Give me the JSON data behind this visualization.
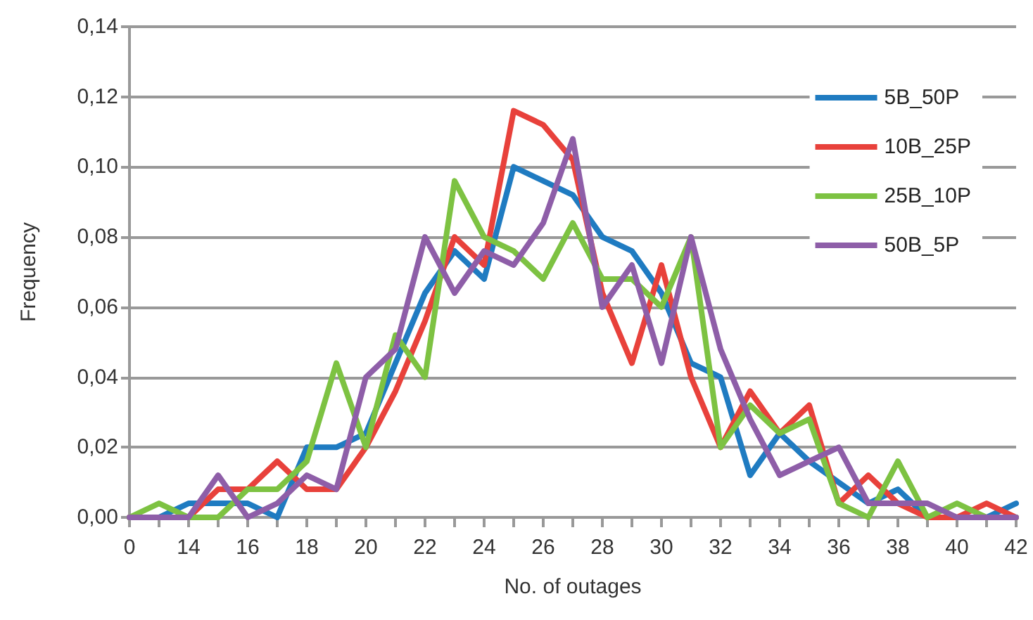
{
  "chart_data": {
    "type": "line",
    "xlabel": "No. of outages",
    "ylabel": "Frequency",
    "categories": [
      "0",
      null,
      "14",
      null,
      "16",
      null,
      "18",
      null,
      "20",
      null,
      "22",
      null,
      "24",
      null,
      "26",
      null,
      "28",
      null,
      "30",
      null,
      "32",
      null,
      "34",
      null,
      "36",
      null,
      "38",
      null,
      "40",
      null,
      "42"
    ],
    "series": [
      {
        "name": "5B_50P",
        "color": "#1f7bc1",
        "values": [
          0,
          0,
          0.004,
          0.004,
          0.004,
          0,
          0.02,
          0.02,
          0.024,
          0.044,
          0.064,
          0.076,
          0.068,
          0.1,
          0.096,
          0.092,
          0.08,
          0.076,
          0.064,
          0.044,
          0.04,
          0.012,
          0.024,
          0.016,
          0.01,
          0.004,
          0.008,
          0,
          0,
          0,
          0.004
        ]
      },
      {
        "name": "10B_25P",
        "color": "#e8413b",
        "values": [
          0,
          0,
          0,
          0.008,
          0.008,
          0.016,
          0.008,
          0.008,
          0.02,
          0.036,
          0.056,
          0.08,
          0.072,
          0.116,
          0.112,
          0.102,
          0.064,
          0.044,
          0.072,
          0.04,
          0.02,
          0.036,
          0.024,
          0.032,
          0.004,
          0.012,
          0.004,
          0,
          0,
          0.004,
          0
        ]
      },
      {
        "name": "25B_10P",
        "color": "#7dc242",
        "values": [
          0,
          0.004,
          0,
          0,
          0.008,
          0.008,
          0.016,
          0.044,
          0.02,
          0.052,
          0.04,
          0.096,
          0.08,
          0.076,
          0.068,
          0.084,
          0.068,
          0.068,
          0.06,
          0.08,
          0.02,
          0.032,
          0.024,
          0.028,
          0.004,
          0,
          0.016,
          0,
          0.004,
          0,
          0
        ]
      },
      {
        "name": "50B_5P",
        "color": "#8e5ea8",
        "values": [
          0,
          0,
          0,
          0.012,
          0,
          0.004,
          0.012,
          0.008,
          0.04,
          0.048,
          0.08,
          0.064,
          0.076,
          0.072,
          0.084,
          0.108,
          0.06,
          0.072,
          0.044,
          0.08,
          0.048,
          0.028,
          0.012,
          0.016,
          0.02,
          0.004,
          0.004,
          0.004,
          0,
          0,
          0
        ]
      }
    ],
    "ylim": [
      0,
      0.14
    ],
    "yticks": [
      {
        "value": 0,
        "label": "0,00"
      },
      {
        "value": 0.02,
        "label": "0,02"
      },
      {
        "value": 0.04,
        "label": "0,04"
      },
      {
        "value": 0.06,
        "label": "0,06"
      },
      {
        "value": 0.08,
        "label": "0,08"
      },
      {
        "value": 0.1,
        "label": "0,10"
      },
      {
        "value": 0.12,
        "label": "0,12"
      },
      {
        "value": 0.14,
        "label": "0,14"
      }
    ],
    "grid": "y",
    "legend": "top right",
    "marker": "none",
    "line_style": "solid"
  }
}
